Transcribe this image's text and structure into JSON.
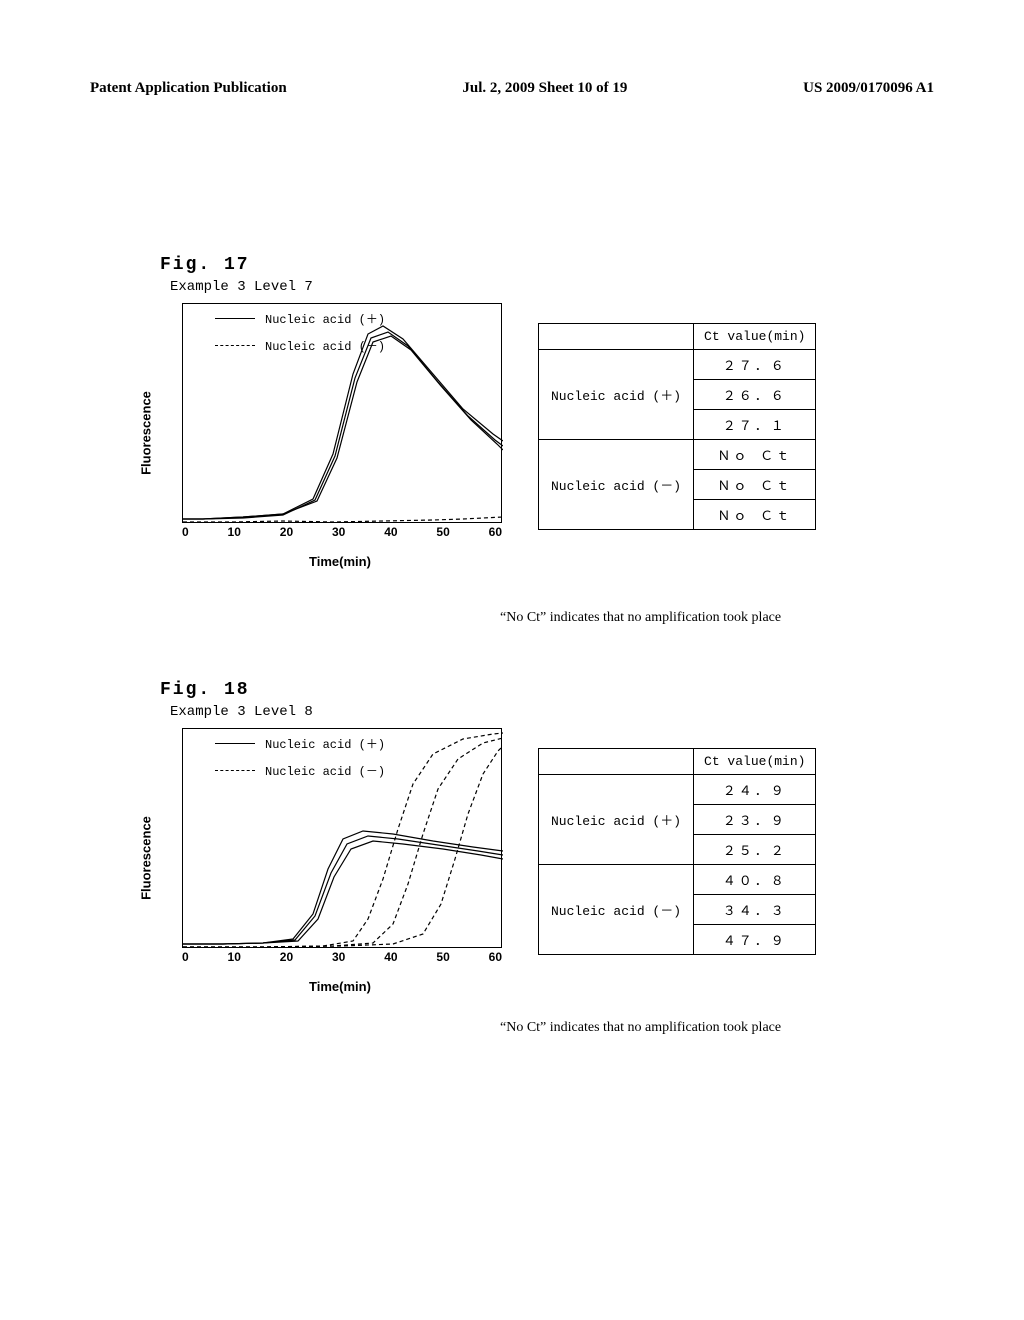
{
  "header": {
    "left": "Patent Application Publication",
    "center": "Jul. 2, 2009  Sheet 10 of 19",
    "right": "US 2009/0170096 A1"
  },
  "fig17": {
    "label": "Fig. 17",
    "subtitle": "Example 3  Level 7",
    "chart": {
      "type": "line",
      "xlabel": "Time(min)",
      "ylabel": "Fluorescence",
      "xlim": [
        0,
        60
      ],
      "xticks": [
        "0",
        "10",
        "20",
        "30",
        "40",
        "50",
        "60"
      ],
      "background_color": "#ffffff",
      "border_color": "#000000",
      "legend": [
        {
          "style": "solid",
          "label": "Nucleic acid (＋)"
        },
        {
          "style": "dashed",
          "label": "Nucleic acid (－)"
        }
      ],
      "series_solid": [
        {
          "points": [
            [
              0,
              215
            ],
            [
              20,
              215
            ],
            [
              60,
              213
            ],
            [
              100,
              210
            ],
            [
              130,
              195
            ],
            [
              150,
              150
            ],
            [
              170,
              70
            ],
            [
              185,
              30
            ],
            [
              200,
              22
            ],
            [
              220,
              35
            ],
            [
              250,
              70
            ],
            [
              280,
              105
            ],
            [
              310,
              130
            ],
            [
              320,
              137
            ]
          ],
          "color": "#000000"
        },
        {
          "points": [
            [
              0,
              215
            ],
            [
              20,
              215
            ],
            [
              60,
              214
            ],
            [
              100,
              211
            ],
            [
              132,
              196
            ],
            [
              152,
              152
            ],
            [
              172,
              74
            ],
            [
              188,
              34
            ],
            [
              205,
              28
            ],
            [
              225,
              42
            ],
            [
              255,
              78
            ],
            [
              285,
              112
            ],
            [
              312,
              136
            ],
            [
              320,
              142
            ]
          ],
          "color": "#000000"
        },
        {
          "points": [
            [
              0,
              215
            ],
            [
              20,
              215
            ],
            [
              60,
              213
            ],
            [
              100,
              210
            ],
            [
              134,
              197
            ],
            [
              154,
              154
            ],
            [
              174,
              78
            ],
            [
              190,
              38
            ],
            [
              208,
              32
            ],
            [
              228,
              46
            ],
            [
              258,
              82
            ],
            [
              288,
              116
            ],
            [
              314,
              140
            ],
            [
              320,
              146
            ]
          ],
          "color": "#000000"
        }
      ],
      "series_dashed": [
        {
          "points": [
            [
              0,
              218
            ],
            [
              50,
              218
            ],
            [
              100,
              217
            ],
            [
              150,
              218
            ],
            [
              200,
              217
            ],
            [
              250,
              216
            ],
            [
              280,
              215
            ],
            [
              300,
              214
            ],
            [
              320,
              213
            ]
          ],
          "color": "#000000"
        }
      ]
    },
    "table": {
      "header": [
        "",
        "Ct value(min)"
      ],
      "rows": [
        {
          "label": "Nucleic acid (＋)",
          "values": [
            "２７．６",
            "２６．６",
            "２７．１"
          ]
        },
        {
          "label": "Nucleic acid (－)",
          "values": [
            "Ｎｏ Ｃｔ",
            "Ｎｏ Ｃｔ",
            "Ｎｏ Ｃｔ"
          ]
        }
      ]
    },
    "footnote": "“No Ct” indicates that no amplification took place"
  },
  "fig18": {
    "label": "Fig. 18",
    "subtitle": "Example 3  Level 8",
    "chart": {
      "type": "line",
      "xlabel": "Time(min)",
      "ylabel": "Fluorescence",
      "xlim": [
        0,
        60
      ],
      "xticks": [
        "0",
        "10",
        "20",
        "30",
        "40",
        "50",
        "60"
      ],
      "background_color": "#ffffff",
      "border_color": "#000000",
      "legend": [
        {
          "style": "solid",
          "label": "Nucleic acid (＋)"
        },
        {
          "style": "dashed",
          "label": "Nucleic acid (－)"
        }
      ],
      "series_solid": [
        {
          "points": [
            [
              0,
              215
            ],
            [
              40,
              215
            ],
            [
              80,
              214
            ],
            [
              110,
              210
            ],
            [
              130,
              185
            ],
            [
              145,
              140
            ],
            [
              160,
              110
            ],
            [
              180,
              102
            ],
            [
              210,
              105
            ],
            [
              250,
              112
            ],
            [
              290,
              118
            ],
            [
              320,
              122
            ]
          ],
          "color": "#000000"
        },
        {
          "points": [
            [
              0,
              215
            ],
            [
              40,
              215
            ],
            [
              80,
              214
            ],
            [
              112,
              211
            ],
            [
              132,
              187
            ],
            [
              148,
              144
            ],
            [
              164,
              115
            ],
            [
              185,
              107
            ],
            [
              215,
              110
            ],
            [
              255,
              116
            ],
            [
              295,
              122
            ],
            [
              320,
              126
            ]
          ],
          "color": "#000000"
        },
        {
          "points": [
            [
              0,
              215
            ],
            [
              40,
              215
            ],
            [
              80,
              214
            ],
            [
              115,
              212
            ],
            [
              135,
              190
            ],
            [
              151,
              148
            ],
            [
              168,
              120
            ],
            [
              190,
              112
            ],
            [
              220,
              115
            ],
            [
              260,
              120
            ],
            [
              298,
              126
            ],
            [
              320,
              130
            ]
          ],
          "color": "#000000"
        }
      ],
      "series_dashed": [
        {
          "points": [
            [
              0,
              218
            ],
            [
              80,
              218
            ],
            [
              140,
              217
            ],
            [
              170,
              212
            ],
            [
              185,
              190
            ],
            [
              200,
              150
            ],
            [
              215,
              100
            ],
            [
              230,
              55
            ],
            [
              250,
              25
            ],
            [
              280,
              10
            ],
            [
              310,
              5
            ],
            [
              320,
              4
            ]
          ],
          "color": "#000000"
        },
        {
          "points": [
            [
              0,
              218
            ],
            [
              80,
              218
            ],
            [
              150,
              217
            ],
            [
              190,
              214
            ],
            [
              210,
              195
            ],
            [
              225,
              155
            ],
            [
              240,
              105
            ],
            [
              255,
              60
            ],
            [
              275,
              30
            ],
            [
              300,
              14
            ],
            [
              320,
              9
            ]
          ],
          "color": "#000000"
        },
        {
          "points": [
            [
              0,
              218
            ],
            [
              80,
              218
            ],
            [
              160,
              217
            ],
            [
              210,
              215
            ],
            [
              240,
              205
            ],
            [
              258,
              175
            ],
            [
              272,
              130
            ],
            [
              285,
              85
            ],
            [
              300,
              45
            ],
            [
              315,
              22
            ],
            [
              320,
              17
            ]
          ],
          "color": "#000000"
        }
      ]
    },
    "table": {
      "header": [
        "",
        "Ct value(min)"
      ],
      "rows": [
        {
          "label": "Nucleic acid (＋)",
          "values": [
            "２４．９",
            "２３．９",
            "２５．２"
          ]
        },
        {
          "label": "Nucleic acid (－)",
          "values": [
            "４０．８",
            "３４．３",
            "４７．９"
          ]
        }
      ]
    },
    "footnote": "“No Ct” indicates that no amplification took place"
  }
}
